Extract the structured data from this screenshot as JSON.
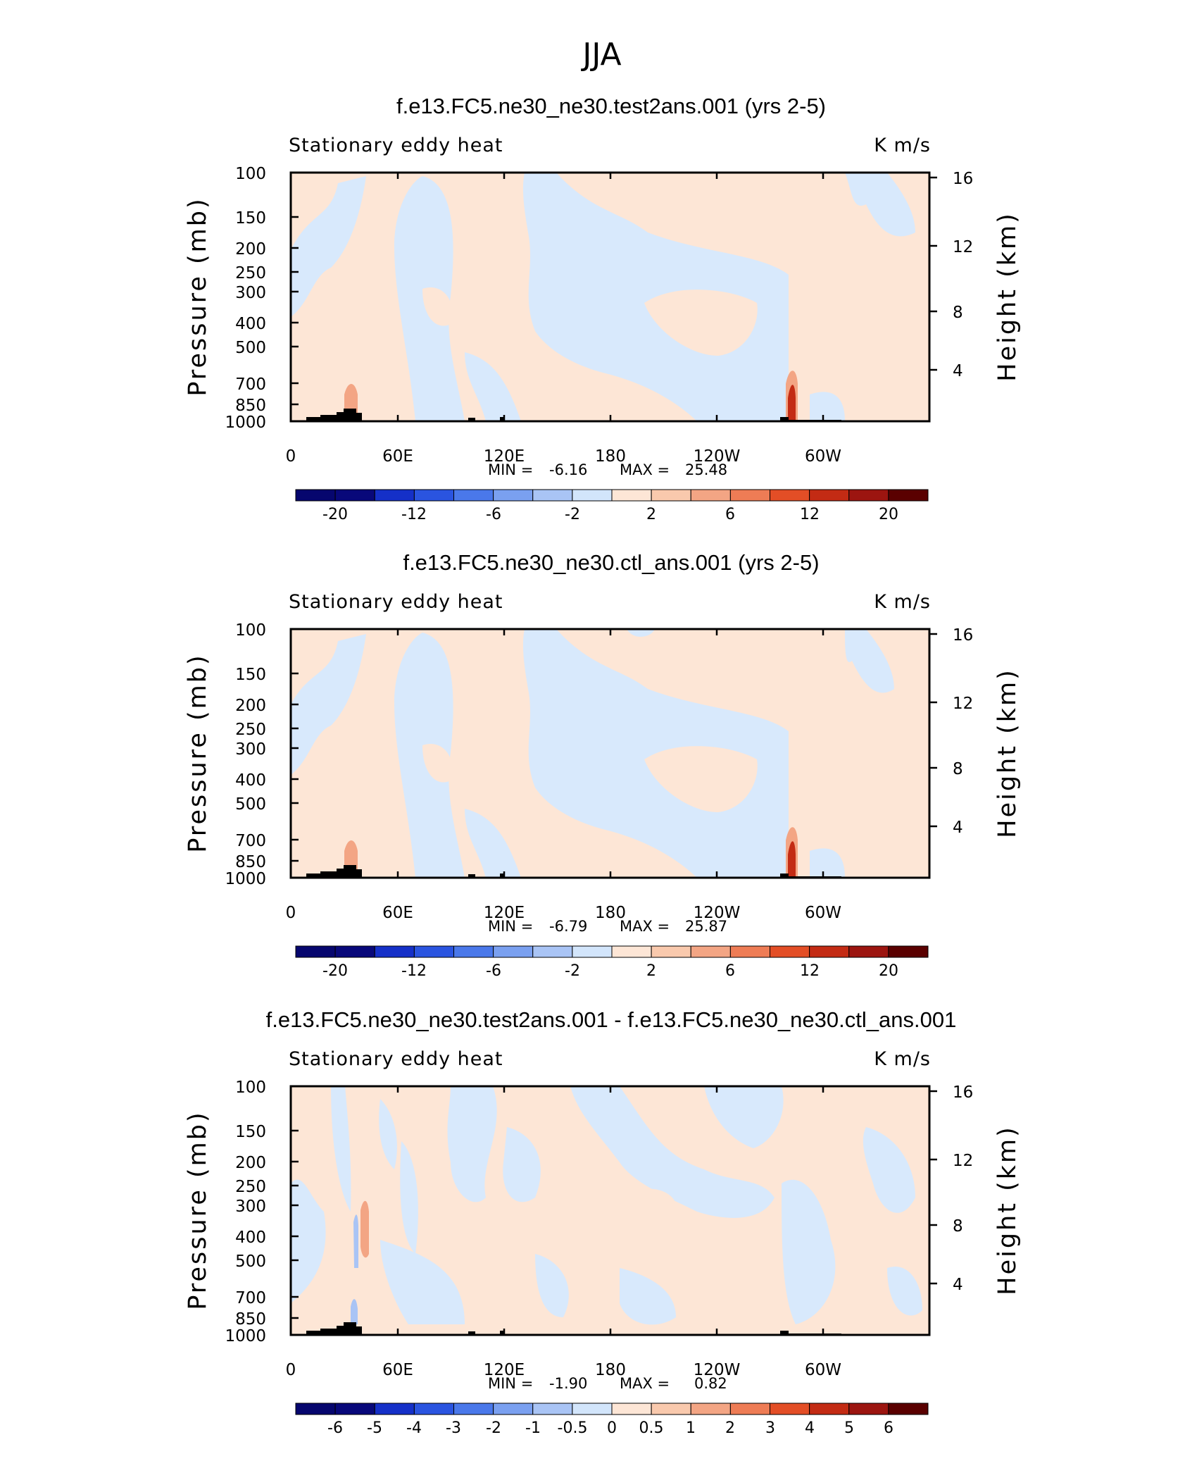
{
  "figure": {
    "title": "JJA"
  },
  "chart_data": [
    {
      "type": "heatmap",
      "title": "f.e13.FC5.ne30_ne30.test2ans.001 (yrs 2-5)",
      "subtitle_left": "Stationary eddy heat",
      "subtitle_right": "K m/s",
      "ylabel": "Pressure (mb)",
      "ylabel_right": "Height (km)",
      "x_ticks": [
        "0",
        "60E",
        "120E",
        "180",
        "120W",
        "60W"
      ],
      "y_ticks": [
        "100",
        "150",
        "200",
        "250",
        "300",
        "400",
        "500",
        "700",
        "850",
        "1000"
      ],
      "y_ticks_right": [
        "16",
        "12",
        "8",
        "4"
      ],
      "min_label": "MIN =",
      "min_value": "-6.16",
      "max_label": "MAX =",
      "max_value": "25.48",
      "min": -6.16,
      "max": 25.48,
      "colorbar_labels": [
        "-20",
        "-12",
        "-6",
        "-2",
        "2",
        "6",
        "12",
        "20"
      ],
      "colorbar_levels": [
        -20,
        -16,
        -12,
        -8,
        -6,
        -4,
        -2,
        0,
        2,
        4,
        6,
        8,
        12,
        16,
        20
      ]
    },
    {
      "type": "heatmap",
      "title": "f.e13.FC5.ne30_ne30.ctl_ans.001 (yrs 2-5)",
      "subtitle_left": "Stationary eddy heat",
      "subtitle_right": "K m/s",
      "ylabel": "Pressure (mb)",
      "ylabel_right": "Height (km)",
      "x_ticks": [
        "0",
        "60E",
        "120E",
        "180",
        "120W",
        "60W"
      ],
      "y_ticks": [
        "100",
        "150",
        "200",
        "250",
        "300",
        "400",
        "500",
        "700",
        "850",
        "1000"
      ],
      "y_ticks_right": [
        "16",
        "12",
        "8",
        "4"
      ],
      "min_label": "MIN =",
      "min_value": "-6.79",
      "max_label": "MAX =",
      "max_value": "25.87",
      "min": -6.79,
      "max": 25.87,
      "colorbar_labels": [
        "-20",
        "-12",
        "-6",
        "-2",
        "2",
        "6",
        "12",
        "20"
      ],
      "colorbar_levels": [
        -20,
        -16,
        -12,
        -8,
        -6,
        -4,
        -2,
        0,
        2,
        4,
        6,
        8,
        12,
        16,
        20
      ]
    },
    {
      "type": "heatmap",
      "title": "f.e13.FC5.ne30_ne30.test2ans.001 - f.e13.FC5.ne30_ne30.ctl_ans.001",
      "subtitle_left": "Stationary eddy heat",
      "subtitle_right": "K m/s",
      "ylabel": "Pressure (mb)",
      "ylabel_right": "Height (km)",
      "x_ticks": [
        "0",
        "60E",
        "120E",
        "180",
        "120W",
        "60W"
      ],
      "y_ticks": [
        "100",
        "150",
        "200",
        "250",
        "300",
        "400",
        "500",
        "700",
        "850",
        "1000"
      ],
      "y_ticks_right": [
        "16",
        "12",
        "8",
        "4"
      ],
      "min_label": "MIN =",
      "min_value": "-1.90",
      "max_label": "MAX =",
      "max_value": "0.82",
      "min": -1.9,
      "max": 0.82,
      "colorbar_labels": [
        "-6",
        "-5",
        "-4",
        "-3",
        "-2",
        "-1",
        "-0.5",
        "0",
        "0.5",
        "1",
        "2",
        "3",
        "4",
        "5",
        "6"
      ],
      "colorbar_levels": [
        -6,
        -5,
        -4,
        -3,
        -2,
        -1,
        -0.5,
        0,
        0.5,
        1,
        2,
        3,
        4,
        5,
        6
      ]
    }
  ],
  "colors": {
    "cmap": [
      "#08087a",
      "#1530c8",
      "#2a54e0",
      "#4a78ea",
      "#7aa0f0",
      "#a9c4f5",
      "#d2e5fb",
      "#fde6d6",
      "#f9c9ad",
      "#f3a584",
      "#ee7c55",
      "#e34e26",
      "#c32b14",
      "#9c1510",
      "#6b0808"
    ],
    "neg": "#d8e9fc",
    "pos": "#fde6d6",
    "terrain": "#000000"
  }
}
